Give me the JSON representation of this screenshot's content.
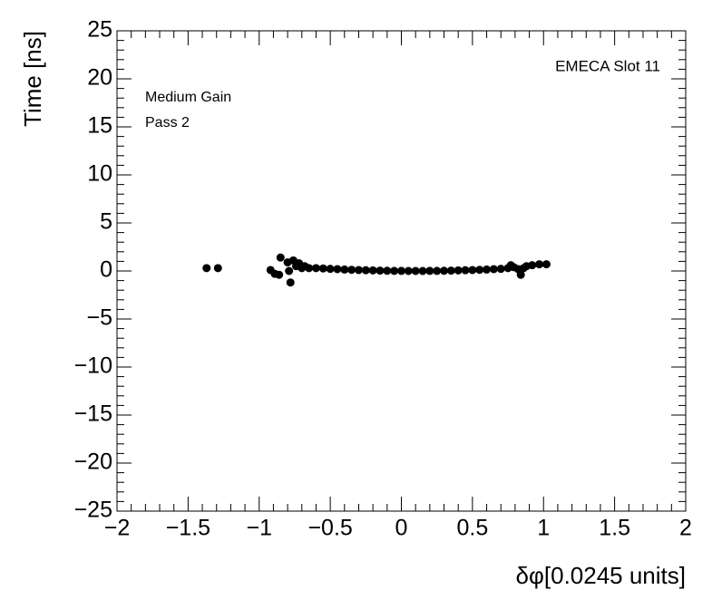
{
  "chart_data": {
    "type": "scatter",
    "x_label": "δφ[0.0245 units]",
    "y_label": "Time [ns]",
    "annotations": [
      "EMECA Slot 11",
      "Medium Gain",
      "Pass 2"
    ],
    "color": "#000000",
    "x": [
      -1.37,
      -1.29,
      -0.92,
      -0.89,
      -0.86,
      -0.85,
      -0.8,
      -0.79,
      -0.78,
      -0.76,
      -0.74,
      -0.72,
      -0.7,
      -0.68,
      -0.65,
      -0.6,
      -0.55,
      -0.5,
      -0.45,
      -0.4,
      -0.35,
      -0.3,
      -0.25,
      -0.2,
      -0.15,
      -0.1,
      -0.05,
      0,
      0.05,
      0.1,
      0.15,
      0.2,
      0.25,
      0.3,
      0.35,
      0.4,
      0.45,
      0.5,
      0.55,
      0.6,
      0.65,
      0.7,
      0.75,
      0.77,
      0.79,
      0.82,
      0.84,
      0.86,
      0.88,
      0.92,
      0.97,
      1.02
    ],
    "y": [
      0.3,
      0.3,
      0.1,
      -0.3,
      -0.4,
      1.4,
      0.9,
      0,
      -1.2,
      1.1,
      0.5,
      0.8,
      0.3,
      0.5,
      0.3,
      0.3,
      0.26,
      0.22,
      0.19,
      0.15,
      0.12,
      0.1,
      0.08,
      0.06,
      0.04,
      0.02,
      0.01,
      0.01,
      0,
      0,
      0,
      0.01,
      0.01,
      0.02,
      0.04,
      0.06,
      0.08,
      0.1,
      0.12,
      0.15,
      0.19,
      0.22,
      0.3,
      0.6,
      0.4,
      0.2,
      -0.4,
      0.3,
      0.5,
      0.6,
      0.7,
      0.7
    ],
    "xlim": [
      -2,
      2
    ],
    "ylim": [
      -25,
      25
    ],
    "xticks": [
      {
        "value": -2,
        "label": "−2"
      },
      {
        "value": -1.5,
        "label": "−1.5"
      },
      {
        "value": -1,
        "label": "−1"
      },
      {
        "value": -0.5,
        "label": "−0.5"
      },
      0,
      0.5,
      1,
      1.5,
      2
    ],
    "yticks": [
      {
        "value": -25,
        "label": "−25"
      },
      {
        "value": -20,
        "label": "−20"
      },
      {
        "value": -15,
        "label": "−15"
      },
      {
        "value": -10,
        "label": "−10"
      },
      {
        "value": -5,
        "label": "−5"
      },
      0,
      5,
      10,
      15,
      20,
      25
    ]
  }
}
